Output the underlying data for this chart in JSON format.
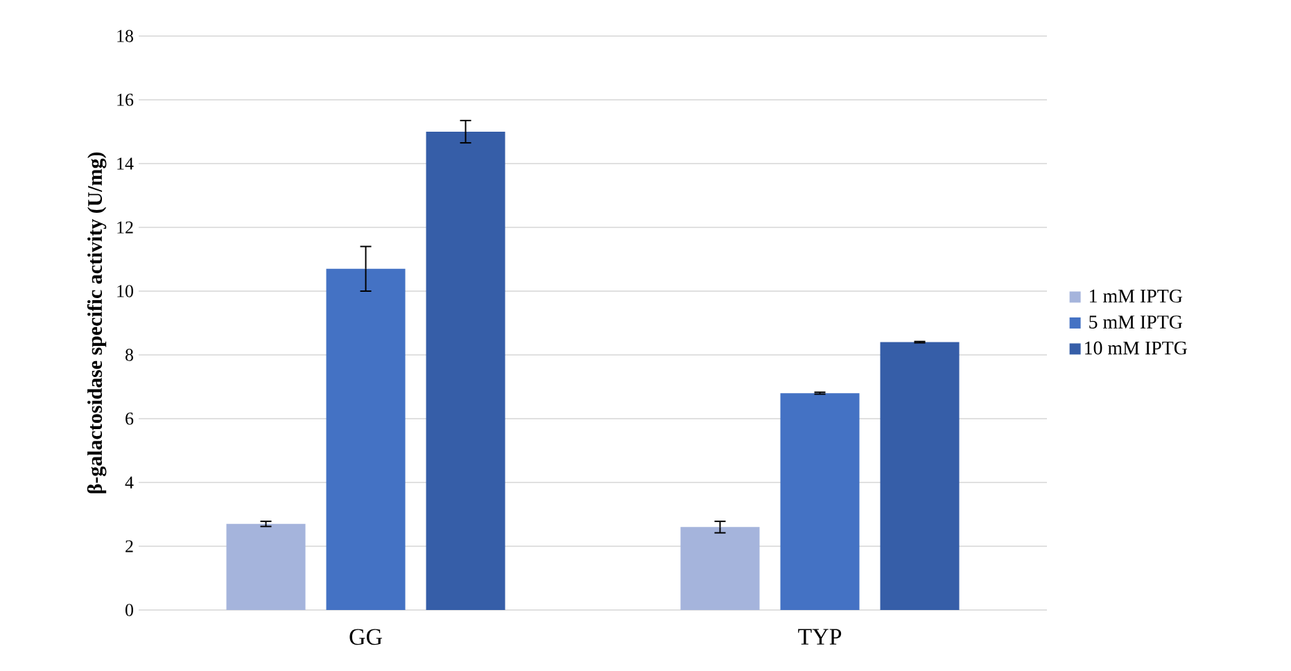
{
  "chart_data": {
    "type": "bar",
    "ylabel": "β-galactosidase specific activity (U/mg)",
    "categories": [
      "GG",
      "TYP"
    ],
    "series": [
      {
        "name": "1 mM IPTG",
        "color": "#a5b4dc",
        "values": [
          2.7,
          2.6
        ],
        "errors": [
          0.08,
          0.18
        ]
      },
      {
        "name": "5 mM IPTG",
        "color": "#4472c4",
        "values": [
          10.7,
          6.8
        ],
        "errors": [
          0.7,
          0.03
        ]
      },
      {
        "name": "10 mM IPTG",
        "color": "#365ea8",
        "values": [
          15.0,
          8.4
        ],
        "errors": [
          0.35,
          0.02
        ]
      }
    ],
    "ylim": [
      0,
      18
    ],
    "yticks": [
      0,
      2,
      4,
      6,
      8,
      10,
      12,
      14,
      16,
      18
    ],
    "grid": "y",
    "legend": "right"
  }
}
